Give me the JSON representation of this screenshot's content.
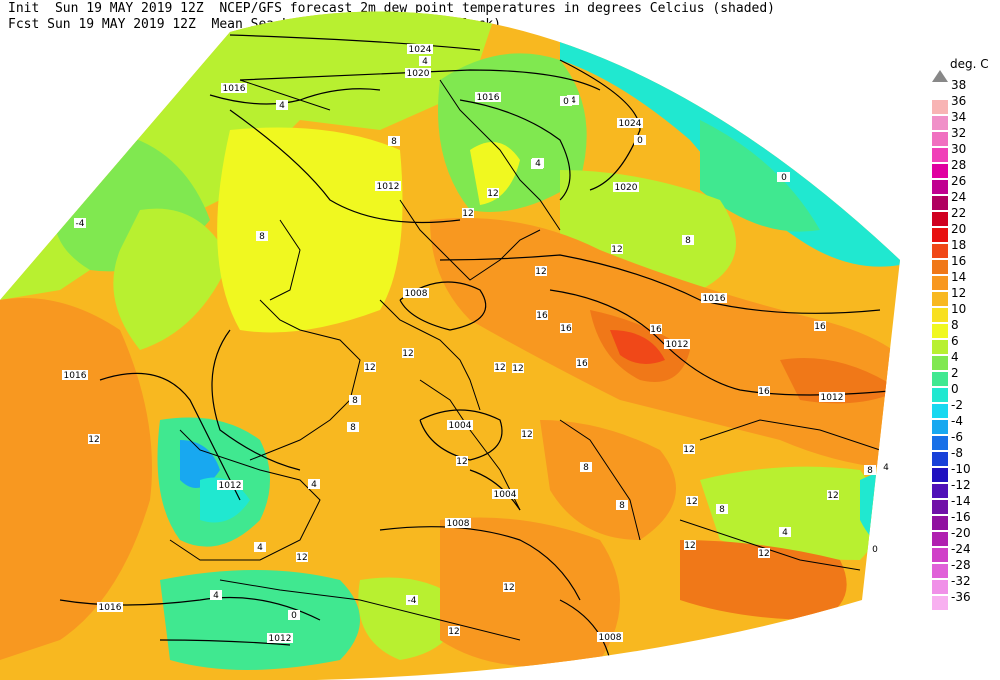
{
  "header": {
    "line1": "Init  Sun 19 MAY 2019 12Z  NCEP/GFS forecast 2m dew point temperatures in degrees Celcius (shaded)",
    "line2": "Fcst Sun 19 MAY 2019 12Z  Mean Sea-Level Pressure (hPa) (black)"
  },
  "legend": {
    "title": "deg. C",
    "top_label": "38",
    "items": [
      {
        "label": "36",
        "color": "#f8b4b4"
      },
      {
        "label": "34",
        "color": "#f090c8"
      },
      {
        "label": "32",
        "color": "#f070c0"
      },
      {
        "label": "30",
        "color": "#f040b8"
      },
      {
        "label": "28",
        "color": "#e000a0"
      },
      {
        "label": "26",
        "color": "#c00090"
      },
      {
        "label": "24",
        "color": "#b00060"
      },
      {
        "label": "22",
        "color": "#d00020"
      },
      {
        "label": "20",
        "color": "#e81010"
      },
      {
        "label": "18",
        "color": "#f04818"
      },
      {
        "label": "16",
        "color": "#f07818"
      },
      {
        "label": "14",
        "color": "#f89820"
      },
      {
        "label": "12",
        "color": "#f8b820"
      },
      {
        "label": "10",
        "color": "#f8e020"
      },
      {
        "label": "8",
        "color": "#f0f820"
      },
      {
        "label": "6",
        "color": "#b8f030"
      },
      {
        "label": "4",
        "color": "#80e850"
      },
      {
        "label": "2",
        "color": "#40e890"
      },
      {
        "label": "0",
        "color": "#20e8d0"
      },
      {
        "label": "-2",
        "color": "#18d8f0"
      },
      {
        "label": "-4",
        "color": "#18a8f0"
      },
      {
        "label": "-6",
        "color": "#1870e8"
      },
      {
        "label": "-8",
        "color": "#1840d8"
      },
      {
        "label": "-10",
        "color": "#2010c0"
      },
      {
        "label": "-12",
        "color": "#5010b8"
      },
      {
        "label": "-14",
        "color": "#7010a8"
      },
      {
        "label": "-16",
        "color": "#9010a0"
      },
      {
        "label": "-20",
        "color": "#b020b0"
      },
      {
        "label": "-24",
        "color": "#d040c8"
      },
      {
        "label": "-28",
        "color": "#e060d8"
      },
      {
        "label": "-32",
        "color": "#f090e8"
      },
      {
        "label": "-36",
        "color": "#f8b0f0"
      }
    ]
  },
  "isobar_labels": [
    "1024",
    "1020",
    "1016",
    "1016",
    "1024",
    "1020",
    "1012",
    "1016",
    "1008",
    "1012",
    "1016",
    "1012",
    "1004",
    "1012",
    "1004",
    "1008",
    "1016",
    "1012",
    "1008"
  ],
  "dewpoint_labels": [
    "4",
    "4",
    "4",
    "8",
    "8",
    "8",
    "8",
    "4",
    "12",
    "12",
    "12",
    "12",
    "16",
    "16",
    "12",
    "16",
    "16",
    "8",
    "8",
    "12",
    "12",
    "12",
    "12",
    "12",
    "12",
    "12",
    "4",
    "4",
    "12",
    "12",
    "16",
    "16",
    "12",
    "4",
    "0",
    "0",
    "0",
    "-4",
    "-4",
    "4",
    "12",
    "12",
    "4",
    "12",
    "0",
    "8",
    "8",
    "8",
    "12",
    "8",
    "4",
    "0"
  ]
}
